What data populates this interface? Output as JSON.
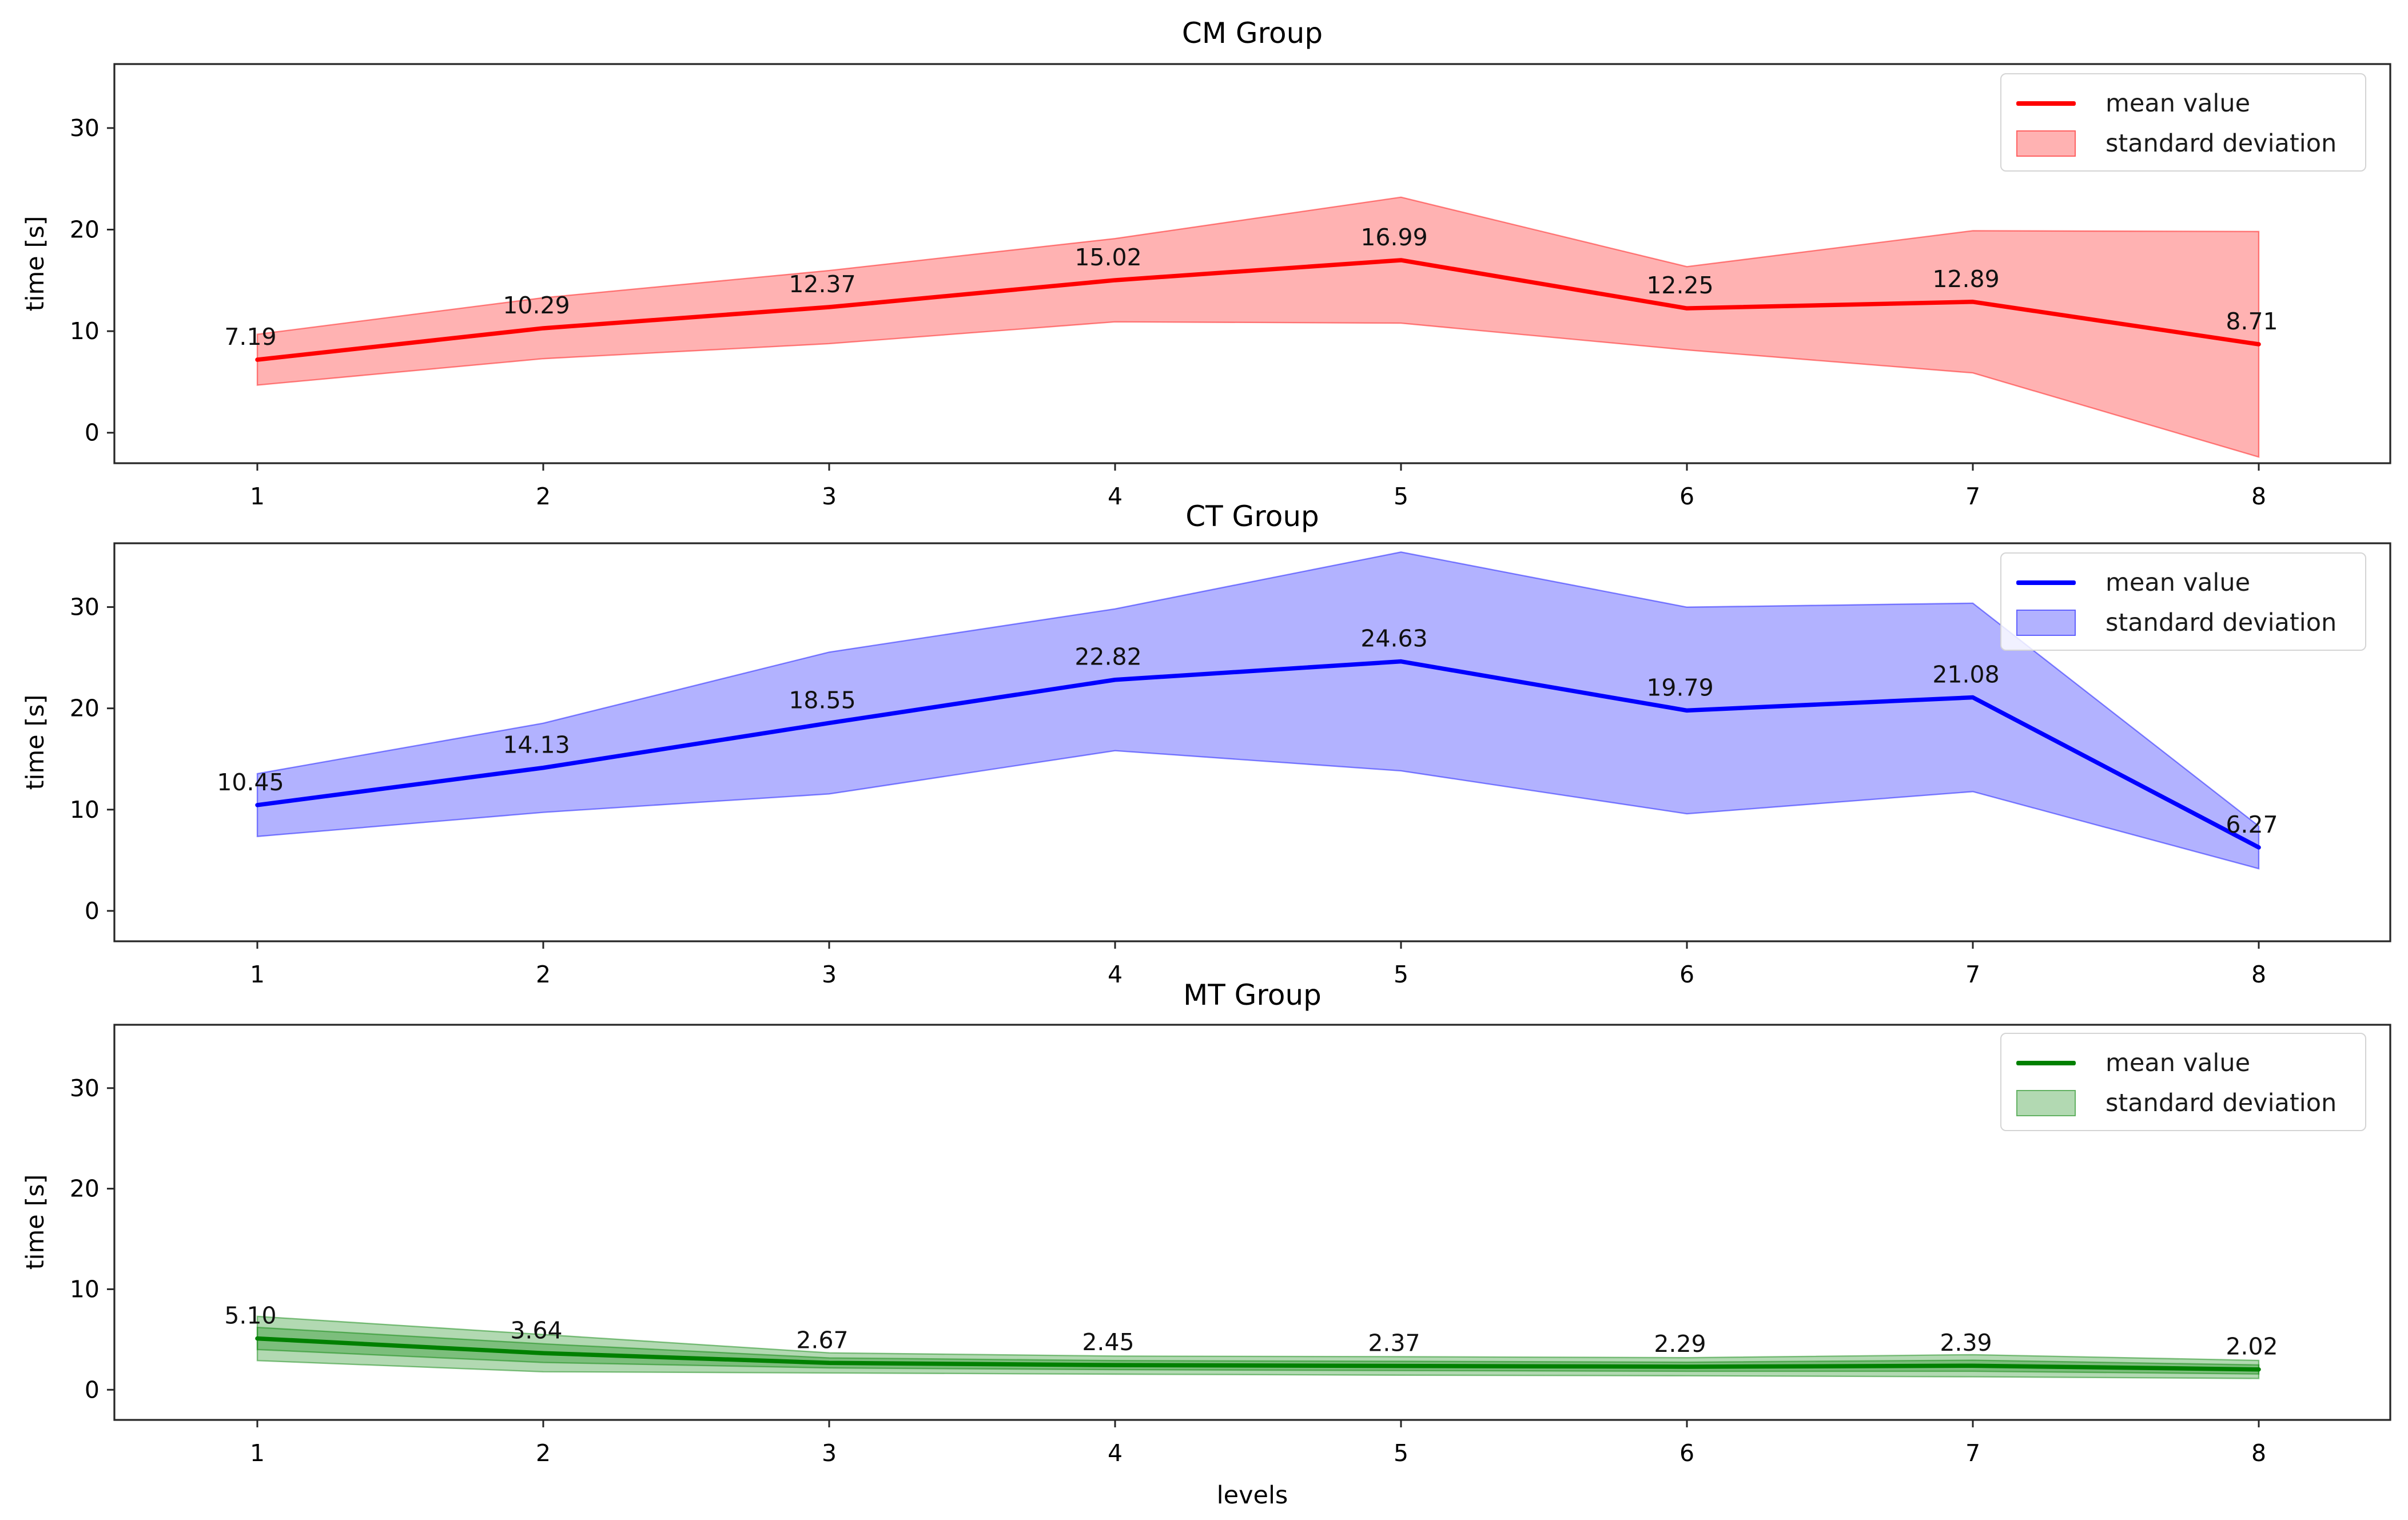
{
  "figure": {
    "xlabel": "levels",
    "background": "#ffffff",
    "text_color": "#000000",
    "spine_color": "#262626"
  },
  "chart_data": [
    {
      "type": "line",
      "title": "CM Group",
      "ylabel": "time [s]",
      "xlabel": "",
      "x": [
        1,
        2,
        3,
        4,
        5,
        6,
        7,
        8
      ],
      "series": [
        {
          "name": "mean value",
          "values": [
            7.19,
            10.29,
            12.37,
            15.02,
            16.99,
            12.25,
            12.89,
            8.71
          ]
        }
      ],
      "std_band": {
        "name": "standard deviation",
        "std": [
          2.5,
          3.0,
          3.6,
          4.1,
          6.2,
          4.1,
          7.0,
          11.1
        ]
      },
      "band_layers": [
        1
      ],
      "point_labels": [
        "7.19",
        "10.29",
        "12.37",
        "15.02",
        "16.99",
        "12.25",
        "12.89",
        "8.71"
      ],
      "legend": [
        "mean value",
        "standard deviation"
      ],
      "legend_position": "upper right",
      "line_color": "#ff0000",
      "band_fill": "rgba(255,0,0,0.30)",
      "band_edge": "rgba(255,0,0,0.45)",
      "xticks": [
        1,
        2,
        3,
        4,
        5,
        6,
        7,
        8
      ],
      "yticks": [
        0,
        10,
        20,
        30
      ],
      "xlim": [
        0.5,
        8.4
      ],
      "ylim": [
        -3,
        36.3
      ],
      "grid": false
    },
    {
      "type": "line",
      "title": "CT Group",
      "ylabel": "time [s]",
      "xlabel": "",
      "x": [
        1,
        2,
        3,
        4,
        5,
        6,
        7,
        8
      ],
      "series": [
        {
          "name": "mean value",
          "values": [
            10.45,
            14.13,
            18.55,
            22.82,
            24.63,
            19.79,
            21.08,
            6.27
          ]
        }
      ],
      "std_band": {
        "name": "standard deviation",
        "std": [
          3.1,
          4.4,
          7.0,
          7.0,
          10.8,
          10.2,
          9.3,
          2.1
        ]
      },
      "band_layers": [
        1
      ],
      "point_labels": [
        "10.45",
        "14.13",
        "18.55",
        "22.82",
        "24.63",
        "19.79",
        "21.08",
        "6.27"
      ],
      "legend": [
        "mean value",
        "standard deviation"
      ],
      "legend_position": "upper right",
      "line_color": "#0000ff",
      "band_fill": "rgba(0,0,255,0.30)",
      "band_edge": "rgba(0,0,255,0.45)",
      "xticks": [
        1,
        2,
        3,
        4,
        5,
        6,
        7,
        8
      ],
      "yticks": [
        0,
        10,
        20,
        30
      ],
      "xlim": [
        0.5,
        8.4
      ],
      "ylim": [
        -3,
        36.3
      ],
      "grid": false
    },
    {
      "type": "line",
      "title": "MT Group",
      "ylabel": "time [s]",
      "xlabel": "levels",
      "x": [
        1,
        2,
        3,
        4,
        5,
        6,
        7,
        8
      ],
      "series": [
        {
          "name": "mean value",
          "values": [
            5.1,
            3.64,
            2.67,
            2.45,
            2.37,
            2.29,
            2.39,
            2.02
          ]
        }
      ],
      "std_band": {
        "name": "standard deviation",
        "std": [
          2.2,
          1.85,
          1.0,
          0.9,
          0.92,
          0.9,
          1.1,
          0.9
        ]
      },
      "band_layers": [
        1,
        0.5
      ],
      "point_labels": [
        "5.10",
        "3.64",
        "2.67",
        "2.45",
        "2.37",
        "2.29",
        "2.39",
        "2.02"
      ],
      "legend": [
        "mean value",
        "standard deviation"
      ],
      "legend_position": "upper right",
      "line_color": "#008000",
      "band_fill": "rgba(0,128,0,0.30)",
      "band_edge": "rgba(0,128,0,0.45)",
      "xticks": [
        1,
        2,
        3,
        4,
        5,
        6,
        7,
        8
      ],
      "yticks": [
        0,
        10,
        20,
        30
      ],
      "xlim": [
        0.5,
        8.4
      ],
      "ylim": [
        -3,
        36.3
      ],
      "grid": false
    }
  ]
}
